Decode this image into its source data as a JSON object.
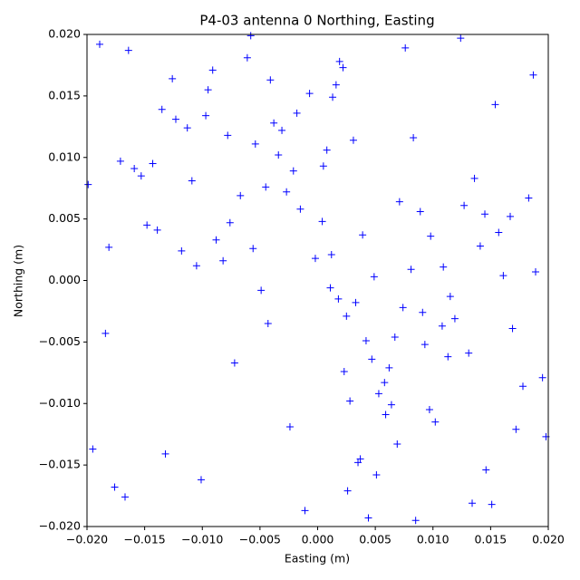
{
  "chart_data": {
    "type": "scatter",
    "title": "P4-03 antenna 0 Northing, Easting",
    "xlabel": "Easting (m)",
    "ylabel": "Northing (m)",
    "color": "#0000ff",
    "marker": "+",
    "xlim": [
      -0.02,
      0.02
    ],
    "ylim": [
      -0.02,
      0.02
    ],
    "xticks": [
      {
        "value": -0.02,
        "label": "−0.020"
      },
      {
        "value": -0.015,
        "label": "−0.015"
      },
      {
        "value": -0.01,
        "label": "−0.010"
      },
      {
        "value": -0.005,
        "label": "−0.005"
      },
      {
        "value": 0,
        "label": "0.000"
      },
      {
        "value": 0.005,
        "label": "0.005"
      },
      {
        "value": 0.01,
        "label": "0.010"
      },
      {
        "value": 0.015,
        "label": "0.015"
      },
      {
        "value": 0.02,
        "label": "0.020"
      }
    ],
    "yticks": [
      {
        "value": -0.02,
        "label": "−0.020"
      },
      {
        "value": -0.015,
        "label": "−0.015"
      },
      {
        "value": -0.01,
        "label": "−0.010"
      },
      {
        "value": -0.005,
        "label": "−0.005"
      },
      {
        "value": 0,
        "label": "0.000"
      },
      {
        "value": 0.005,
        "label": "0.005"
      },
      {
        "value": 0.01,
        "label": "0.010"
      },
      {
        "value": 0.015,
        "label": "0.015"
      },
      {
        "value": 0.02,
        "label": "0.020"
      }
    ],
    "x": [
      0.0012,
      -0.0043,
      0.0071,
      -0.0105,
      0.0028,
      0.0154,
      -0.0167,
      0.0039,
      -0.0021,
      0.0093,
      -0.0078,
      0.0115,
      0.0004,
      -0.0132,
      0.0187,
      -0.0056,
      0.0062,
      -0.0189,
      0.0025,
      0.0136,
      -0.0011,
      0.0081,
      -0.0095,
      0.0047,
      -0.0034,
      0.0172,
      -0.0148,
      0.0019,
      0.0108,
      -0.0067,
      0.0053,
      -0.0123,
      0.0146,
      -0.0002,
      0.0089,
      -0.0176,
      0.0031,
      -0.0049,
      0.0124,
      0.0195,
      -0.0088,
      0.0016,
      0.0067,
      -0.0159,
      0.0102,
      -0.0027,
      0.0044,
      -0.0113,
      0.0161,
      -0.0195,
      0.0008,
      0.0131,
      -0.0061,
      0.0074,
      -0.0139,
      0.0035,
      0.0183,
      -0.0018,
      0.0097,
      -0.0082,
      0.0058,
      -0.0171,
      0.0022,
      0.0119,
      -0.0038,
      0.0167,
      -0.0101,
      0.0049,
      -0.0153,
      0.0085,
      0.0013,
      -0.0072,
      0.0141,
      -0.0126,
      0.0033,
      0.0198,
      -0.0045,
      0.0076,
      -0.0184,
      0.0109,
      -0.0015,
      0.0059,
      -0.0097,
      0.0157,
      0.0026,
      -0.0143,
      0.0091,
      -0.0054,
      0.0178,
      -0.0007,
      0.0042,
      -0.0118,
      0.0069,
      0.0127,
      -0.0164,
      0.0018,
      -0.0031,
      0.0151,
      -0.0076,
      0.0005,
      0.0113,
      -0.0199,
      0.0037,
      -0.0091,
      0.0189,
      0.0064,
      -0.0135,
      0.0023,
      0.0098,
      -0.0058,
      -0.0024,
      0.0145,
      -0.0181,
      0.0051,
      0.0083,
      -0.0109,
      0.0169,
      -0.0041,
      0.0011,
      0.0134
    ],
    "y": [
      0.0021,
      -0.0035,
      0.0064,
      0.0012,
      -0.0098,
      0.0143,
      -0.0176,
      0.0037,
      0.0089,
      -0.0052,
      0.0118,
      -0.0013,
      0.0048,
      -0.0141,
      0.0167,
      0.0026,
      -0.0071,
      0.0192,
      -0.0029,
      0.0083,
      -0.0187,
      0.0009,
      0.0155,
      -0.0064,
      0.0102,
      -0.0121,
      0.0045,
      0.0178,
      -0.0037,
      0.0069,
      -0.0092,
      0.0131,
      -0.0154,
      0.0018,
      0.0056,
      -0.0168,
      0.0114,
      -0.0008,
      0.0197,
      -0.0079,
      0.0033,
      0.0159,
      -0.0046,
      0.0091,
      -0.0115,
      0.0072,
      -0.0193,
      0.0124,
      0.0004,
      -0.0137,
      0.0106,
      -0.0059,
      0.0181,
      -0.0022,
      0.0041,
      -0.0148,
      0.0067,
      0.0136,
      -0.0105,
      0.0016,
      -0.0083,
      0.0097,
      0.0173,
      -0.0031,
      0.0128,
      0.0052,
      -0.0162,
      0.0003,
      0.0085,
      -0.0195,
      0.0149,
      -0.0067,
      0.0028,
      0.0164,
      -0.0018,
      -0.0127,
      0.0076,
      0.0189,
      -0.0043,
      0.0011,
      0.0058,
      -0.0109,
      0.0134,
      0.0039,
      -0.0171,
      0.0095,
      -0.0026,
      0.0111,
      -0.0086,
      0.0152,
      -0.0049,
      0.0024,
      -0.0133,
      0.0061,
      0.0187,
      -0.0015,
      0.0122,
      -0.0182,
      0.0047,
      0.0093,
      -0.0062,
      0.0078,
      -0.0145,
      0.0171,
      0.0007,
      -0.0101,
      0.0139,
      -0.0074,
      0.0036,
      0.0199,
      -0.0119,
      0.0054,
      0.0027,
      -0.0158,
      0.0116,
      0.0081,
      -0.0039,
      0.0163,
      -0.0006,
      -0.0181
    ]
  }
}
